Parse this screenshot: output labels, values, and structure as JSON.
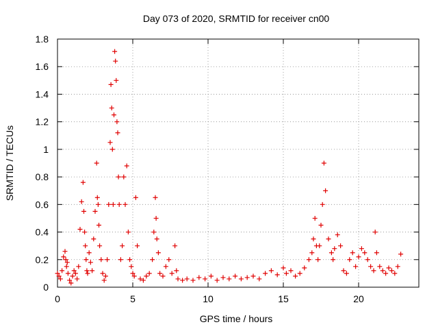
{
  "chart_data": {
    "type": "scatter",
    "title": "Day 073 of 2020, SRMTID for receiver cn00",
    "xlabel": "GPS time / hours",
    "ylabel": "SRMTID / TECUs",
    "xlim": [
      0,
      24
    ],
    "ylim": [
      0,
      1.8
    ],
    "xticks": [
      0,
      5,
      10,
      15,
      20
    ],
    "xtick_labels": [
      "0",
      "5",
      "10",
      "15",
      "20"
    ],
    "yticks": [
      0,
      0.2,
      0.4,
      0.6,
      0.8,
      1,
      1.2,
      1.4,
      1.6,
      1.8
    ],
    "ytick_labels": [
      "0",
      "0.2",
      "0.4",
      "0.6",
      "0.8",
      "1",
      "1.2",
      "1.4",
      "1.6",
      "1.8"
    ],
    "grid": true,
    "marker": "+",
    "color": "#e00000",
    "series": [
      {
        "name": "SRMTID",
        "x": [
          0.0,
          0.1,
          0.2,
          0.3,
          0.4,
          0.5,
          0.55,
          0.6,
          0.65,
          0.7,
          0.8,
          0.9,
          1.0,
          1.1,
          1.2,
          1.3,
          1.4,
          1.5,
          1.6,
          1.7,
          1.75,
          1.8,
          1.85,
          1.9,
          1.95,
          2.0,
          2.1,
          2.2,
          2.3,
          2.4,
          2.5,
          2.6,
          2.65,
          2.7,
          2.75,
          2.8,
          2.9,
          3.0,
          3.1,
          3.2,
          3.3,
          3.4,
          3.5,
          3.55,
          3.6,
          3.65,
          3.7,
          3.75,
          3.8,
          3.85,
          3.9,
          3.95,
          4.0,
          4.05,
          4.1,
          4.2,
          4.3,
          4.4,
          4.5,
          4.6,
          4.7,
          4.8,
          4.9,
          5.0,
          5.1,
          5.2,
          5.3,
          5.5,
          5.7,
          5.9,
          6.1,
          6.3,
          6.4,
          6.5,
          6.55,
          6.6,
          6.7,
          6.8,
          7.0,
          7.2,
          7.4,
          7.6,
          7.8,
          7.9,
          8.0,
          8.3,
          8.6,
          9.0,
          9.4,
          9.8,
          10.2,
          10.6,
          11.0,
          11.4,
          11.8,
          12.2,
          12.6,
          13.0,
          13.4,
          13.8,
          14.2,
          14.6,
          15.0,
          15.2,
          15.5,
          15.8,
          16.1,
          16.4,
          16.7,
          16.9,
          17.0,
          17.1,
          17.2,
          17.3,
          17.4,
          17.5,
          17.6,
          17.7,
          17.8,
          18.0,
          18.2,
          18.3,
          18.4,
          18.6,
          18.8,
          19.0,
          19.2,
          19.4,
          19.6,
          19.8,
          20.0,
          20.2,
          20.4,
          20.6,
          20.8,
          21.0,
          21.1,
          21.2,
          21.4,
          21.6,
          21.8,
          22.0,
          22.2,
          22.4,
          22.6,
          22.8
        ],
        "y": [
          0.1,
          0.08,
          0.06,
          0.12,
          0.22,
          0.26,
          0.2,
          0.15,
          0.18,
          0.1,
          0.05,
          0.03,
          0.08,
          0.12,
          0.1,
          0.06,
          0.15,
          0.42,
          0.62,
          0.76,
          0.55,
          0.4,
          0.3,
          0.2,
          0.12,
          0.1,
          0.25,
          0.18,
          0.12,
          0.35,
          0.55,
          0.9,
          0.65,
          0.6,
          0.45,
          0.3,
          0.2,
          0.1,
          0.05,
          0.08,
          0.2,
          0.6,
          1.05,
          1.47,
          1.3,
          1.0,
          0.6,
          1.25,
          1.71,
          1.64,
          1.5,
          1.2,
          1.12,
          0.8,
          0.6,
          0.2,
          0.3,
          0.8,
          0.6,
          0.88,
          0.4,
          0.2,
          0.15,
          0.1,
          0.08,
          0.65,
          0.3,
          0.06,
          0.05,
          0.08,
          0.1,
          0.2,
          0.4,
          0.65,
          0.5,
          0.35,
          0.25,
          0.1,
          0.08,
          0.15,
          0.2,
          0.1,
          0.3,
          0.12,
          0.06,
          0.05,
          0.06,
          0.05,
          0.07,
          0.06,
          0.08,
          0.05,
          0.07,
          0.06,
          0.08,
          0.06,
          0.07,
          0.08,
          0.06,
          0.1,
          0.12,
          0.09,
          0.14,
          0.1,
          0.12,
          0.08,
          0.1,
          0.14,
          0.2,
          0.25,
          0.35,
          0.5,
          0.3,
          0.2,
          0.3,
          0.45,
          0.6,
          0.9,
          0.7,
          0.35,
          0.25,
          0.2,
          0.28,
          0.38,
          0.3,
          0.12,
          0.1,
          0.2,
          0.25,
          0.15,
          0.22,
          0.28,
          0.25,
          0.2,
          0.15,
          0.12,
          0.4,
          0.25,
          0.15,
          0.12,
          0.1,
          0.14,
          0.12,
          0.1,
          0.15,
          0.24
        ]
      }
    ]
  }
}
